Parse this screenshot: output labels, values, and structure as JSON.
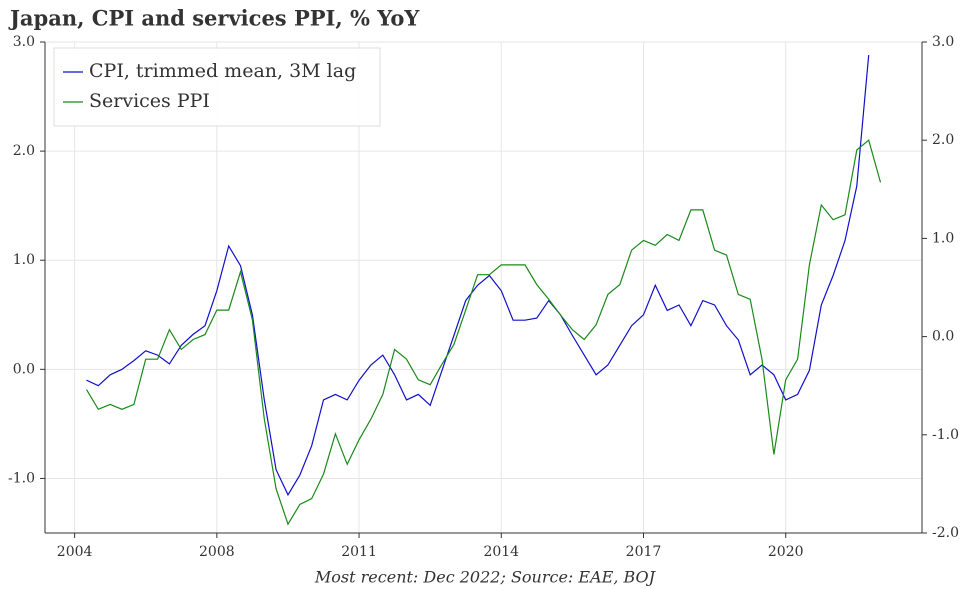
{
  "chart_data": {
    "type": "line",
    "title": "Japan, CPI and services PPI, % YoY",
    "footnote": "Most recent: Dec 2022; Source: EAE, BOJ",
    "x": [
      1,
      2,
      3,
      4,
      5,
      6,
      7,
      8,
      9,
      10,
      11,
      12,
      13,
      14,
      15,
      16,
      17,
      18,
      19,
      20,
      21,
      22,
      23,
      24,
      25,
      26,
      27,
      28,
      29,
      30,
      31,
      32,
      33,
      34,
      35,
      36,
      37,
      38,
      39,
      40,
      41,
      42,
      43,
      44,
      45,
      46,
      47,
      48,
      49,
      50,
      51,
      52,
      53,
      54,
      55,
      56,
      57,
      58,
      59,
      60,
      61,
      62,
      63,
      64,
      65,
      66,
      67,
      68
    ],
    "xlim": [
      -2.5,
      71.5
    ],
    "xticks": [
      {
        "value": 0,
        "label": "2004"
      },
      {
        "value": 12,
        "label": "2008"
      },
      {
        "value": 24,
        "label": "2011"
      },
      {
        "value": 36,
        "label": "2014"
      },
      {
        "value": 48,
        "label": "2017"
      },
      {
        "value": 60,
        "label": "2020"
      }
    ],
    "ylim": [
      -1.5,
      3.0
    ],
    "yticks": [
      {
        "value": -1,
        "label": "-1.0"
      },
      {
        "value": 0,
        "label": "0.0"
      },
      {
        "value": 1,
        "label": "1.0"
      },
      {
        "value": 2,
        "label": "2.0"
      },
      {
        "value": 3,
        "label": "3.0"
      }
    ],
    "y2lim": [
      -2.0,
      3.0
    ],
    "y2ticks": [
      {
        "value": -2,
        "label": "-2.0"
      },
      {
        "value": -1,
        "label": "-1.0"
      },
      {
        "value": 0,
        "label": "0.0"
      },
      {
        "value": 1,
        "label": "1.0"
      },
      {
        "value": 2,
        "label": "2.0"
      },
      {
        "value": 3,
        "label": "3.0"
      }
    ],
    "grid": true,
    "legend": "upper left",
    "series": [
      {
        "name": "CPI, trimmed mean, 3M lag",
        "color": "#1010cc",
        "axis": "y",
        "values": [
          -0.1,
          -0.15,
          -0.05,
          0.0,
          0.08,
          0.17,
          0.13,
          0.05,
          0.22,
          0.32,
          0.4,
          0.72,
          1.13,
          0.95,
          0.5,
          -0.28,
          -0.92,
          -1.15,
          -0.97,
          -0.7,
          -0.28,
          -0.23,
          -0.28,
          -0.1,
          0.04,
          0.13,
          -0.05,
          -0.28,
          -0.23,
          -0.33,
          -0.01,
          0.31,
          0.63,
          0.77,
          0.86,
          0.72,
          0.45,
          0.45,
          0.47,
          0.63,
          0.5,
          0.31,
          0.13,
          -0.05,
          0.04,
          0.22,
          0.4,
          0.5,
          0.77,
          0.54,
          0.59,
          0.4,
          0.63,
          0.59,
          0.4,
          0.27,
          -0.05,
          0.04,
          -0.05,
          -0.28,
          -0.23,
          -0.01,
          0.59,
          0.86,
          1.18,
          1.68,
          2.88,
          null
        ]
      },
      {
        "name": "Services PPI",
        "color": "#1a8a1a",
        "axis": "y2",
        "values": [
          -0.54,
          -0.74,
          -0.69,
          -0.74,
          -0.69,
          -0.23,
          -0.23,
          0.07,
          -0.13,
          -0.03,
          0.02,
          0.27,
          0.27,
          0.66,
          0.17,
          -0.84,
          -1.55,
          -1.91,
          -1.71,
          -1.65,
          -1.4,
          -0.99,
          -1.3,
          -1.05,
          -0.84,
          -0.59,
          -0.13,
          -0.23,
          -0.44,
          -0.49,
          -0.28,
          -0.08,
          0.27,
          0.63,
          0.63,
          0.73,
          0.73,
          0.73,
          0.53,
          0.38,
          0.22,
          0.07,
          -0.03,
          0.12,
          0.43,
          0.53,
          0.88,
          0.98,
          0.93,
          1.04,
          0.98,
          1.29,
          1.29,
          0.88,
          0.83,
          0.43,
          0.38,
          -0.23,
          -1.2,
          -0.44,
          -0.23,
          0.73,
          1.34,
          1.19,
          1.24,
          1.9,
          2.0,
          1.57
        ]
      }
    ]
  }
}
